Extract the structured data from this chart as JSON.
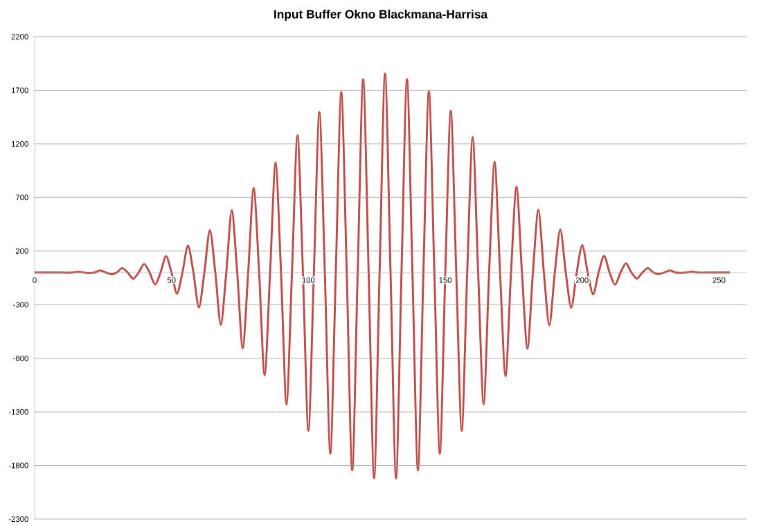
{
  "chart_data": {
    "type": "line",
    "title": "Input Buffer Okno Blackmana-Harrisa",
    "x": [
      0,
      2,
      4,
      6,
      8,
      10,
      12,
      14,
      16,
      18,
      20,
      22,
      24,
      26,
      28,
      30,
      32,
      34,
      36,
      38,
      40,
      42,
      44,
      46,
      48,
      50,
      52,
      54,
      56,
      58,
      60,
      62,
      64,
      66,
      68,
      70,
      72,
      74,
      76,
      78,
      80,
      82,
      84,
      86,
      88,
      90,
      92,
      94,
      96,
      98,
      100,
      102,
      104,
      106,
      108,
      110,
      112,
      114,
      116,
      118,
      120,
      122,
      124,
      126,
      128,
      130,
      132,
      134,
      136,
      138,
      140,
      142,
      144,
      146,
      148,
      150,
      152,
      154,
      156,
      158,
      160,
      162,
      164,
      166,
      168,
      170,
      172,
      174,
      176,
      178,
      180,
      182,
      184,
      186,
      188,
      190,
      192,
      194,
      196,
      198,
      200,
      202,
      204,
      206,
      208,
      210,
      212,
      214,
      216,
      218,
      220,
      222,
      224,
      226,
      228,
      230,
      232,
      234,
      236,
      238,
      240,
      242,
      244,
      246,
      248,
      250,
      252,
      254
    ],
    "series": [
      {
        "color": "#be4b48",
        "values": [
          0,
          0,
          0,
          0,
          0,
          0,
          -2,
          0,
          6,
          0,
          -5,
          0,
          19,
          0,
          -15,
          0,
          41,
          0,
          -58,
          0,
          80,
          0,
          -112,
          0,
          153,
          0,
          -198,
          0,
          252,
          0,
          -327,
          0,
          396,
          0,
          -488,
          0,
          581,
          0,
          -705,
          0,
          790,
          0,
          -959,
          0,
          1027,
          0,
          -1231,
          0,
          1280,
          0,
          -1476,
          0,
          1497,
          0,
          -1690,
          0,
          1683,
          0,
          -1845,
          0,
          1803,
          0,
          -1920,
          0,
          1858,
          0,
          -1920,
          0,
          1803,
          0,
          -1845,
          0,
          1690,
          0,
          -1690,
          0,
          1507,
          0,
          -1476,
          0,
          1264,
          0,
          -1231,
          0,
          1034,
          0,
          -967,
          0,
          800,
          0,
          -710,
          0,
          585,
          0,
          -493,
          0,
          402,
          0,
          -329,
          0,
          256,
          0,
          -204,
          0,
          155,
          0,
          -114,
          0,
          86,
          0,
          -56,
          0,
          41,
          0,
          -13,
          0,
          19,
          0,
          -3,
          0,
          6,
          0,
          -1,
          0,
          0,
          0,
          0,
          0
        ]
      }
    ],
    "xlim": [
      0,
      260
    ],
    "xticks": [
      0,
      50,
      100,
      150,
      200,
      250
    ],
    "ylim": [
      -2300,
      2200
    ],
    "yticks": [
      -2300,
      -1800,
      -1300,
      -800,
      -300,
      200,
      700,
      1200,
      1700,
      2200
    ],
    "grid": "y"
  }
}
